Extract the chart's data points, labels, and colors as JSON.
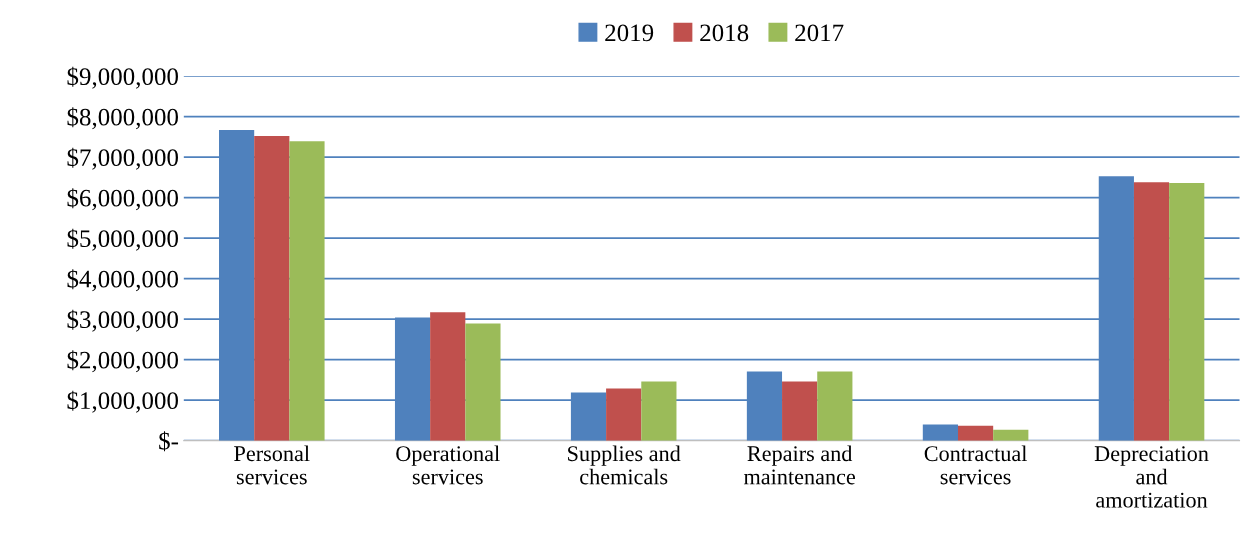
{
  "chart_data": {
    "type": "bar",
    "categories": [
      "Personal\nservices",
      "Operational\nservices",
      "Supplies and\nchemicals",
      "Repairs and\nmaintenance",
      "Contractual\nservices",
      "Depreciation\nand\namortization"
    ],
    "series": [
      {
        "name": "2019",
        "color": "#4f81bd",
        "values": [
          7670000,
          3040000,
          1190000,
          1710000,
          400000,
          6530000
        ]
      },
      {
        "name": "2018",
        "color": "#c0504d",
        "values": [
          7520000,
          3170000,
          1290000,
          1460000,
          370000,
          6380000
        ]
      },
      {
        "name": "2017",
        "color": "#9bbb59",
        "values": [
          7390000,
          2890000,
          1460000,
          1710000,
          270000,
          6360000
        ]
      }
    ],
    "ylim": [
      0,
      9000000
    ],
    "yticks": [
      {
        "value": 0,
        "label": "$-"
      },
      {
        "value": 1000000,
        "label": "$1,000,000"
      },
      {
        "value": 2000000,
        "label": "$2,000,000"
      },
      {
        "value": 3000000,
        "label": "$3,000,000"
      },
      {
        "value": 4000000,
        "label": "$4,000,000"
      },
      {
        "value": 5000000,
        "label": "$5,000,000"
      },
      {
        "value": 6000000,
        "label": "$6,000,000"
      },
      {
        "value": 7000000,
        "label": "$7,000,000"
      },
      {
        "value": 8000000,
        "label": "$8,000,000"
      },
      {
        "value": 9000000,
        "label": "$9,000,000"
      }
    ],
    "grid": "y",
    "legend": "top"
  }
}
